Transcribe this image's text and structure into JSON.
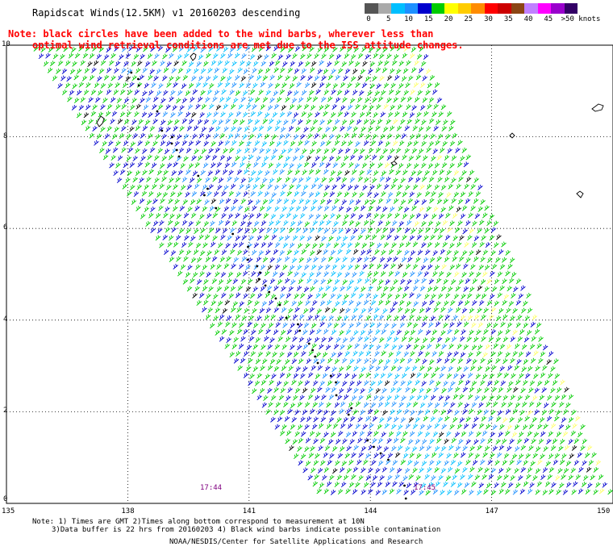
{
  "title": "Rapidscat Winds(12.5KM) v1 20160203 descending",
  "note": {
    "line1": "Note: black circles have been added to the wind barbs, wherever less than",
    "line2": "optimal wind retrieval conditions are met due to the ISS attitude changes."
  },
  "legend": {
    "labels": [
      "0",
      "5",
      "10",
      "15",
      "20",
      "25",
      "30",
      "35",
      "40",
      "45",
      ">50 knots"
    ],
    "colors": [
      "#555555",
      "#aaaaaa",
      "#00bfff",
      "#1e90ff",
      "#0000cd",
      "#00cc00",
      "#ffff00",
      "#ffcc00",
      "#ff8c00",
      "#ff0000",
      "#cc0000",
      "#8b4513",
      "#c080ff",
      "#ff00ff",
      "#9900cc",
      "#330066"
    ]
  },
  "axes": {
    "x_labels": [
      "135",
      "138",
      "141",
      "144",
      "147",
      "150"
    ],
    "y_labels": [
      "0",
      "2",
      "4",
      "6",
      "8",
      "10"
    ]
  },
  "times": [
    "17:44",
    "17:45"
  ],
  "footer": {
    "line1": "Note: 1) Times are GMT 2)Times along bottom correspond to measurement at 10N",
    "line2": "3)Data buffer is 22 hrs from 20160203 4) Black wind barbs indicate possible contamination",
    "line3": "NOAA/NESDIS/Center for Satellite Applications and Research"
  },
  "colors": {
    "barb_green": "#00cc00",
    "barb_blue": "#0000cd",
    "barb_lightblue": "#1e90ff",
    "barb_cyan": "#00bfff",
    "barb_yellow": "#ffff66",
    "note": "#ff0000",
    "time": "#800080"
  }
}
